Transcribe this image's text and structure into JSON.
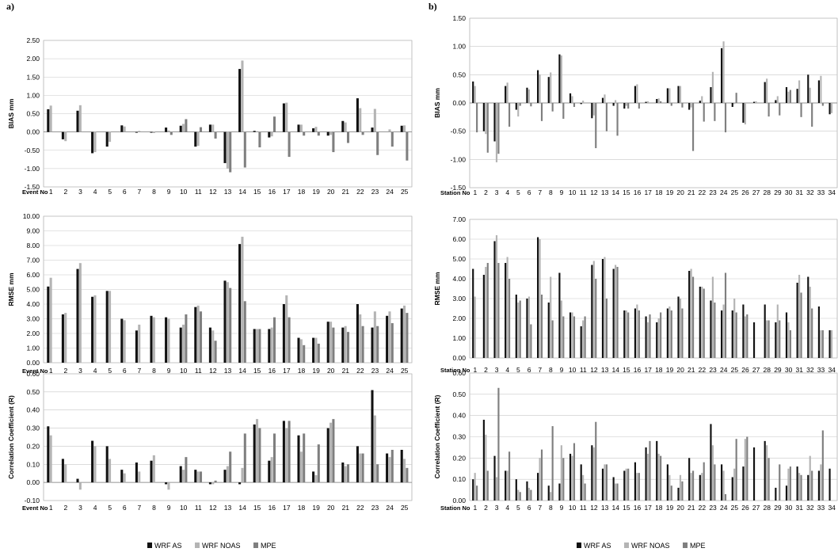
{
  "panel_labels": [
    "a)",
    "b)"
  ],
  "colors": {
    "WRF AS": "#111111",
    "WRF NOAS": "#b4b4b4",
    "MPE": "#7f7f7f",
    "grid": "#c8c8c8"
  },
  "legend": [
    "WRF AS",
    "WRF NOAS",
    "MPE"
  ],
  "chart_data": [
    {
      "id": "a1",
      "type": "bar",
      "panel": "a)",
      "ylabel": "BIAS mm",
      "xname": "Event No",
      "ylim": [
        -1.5,
        2.5
      ],
      "yticks": [
        2.5,
        2.0,
        1.5,
        1.0,
        0.5,
        0.0,
        -0.5,
        -1.0,
        -1.5
      ],
      "ytick_labels": [
        "2.50",
        "2.00",
        "1.50",
        "1.00",
        "0.50",
        "0.00",
        "-0.50",
        "-1.00",
        "-1.50"
      ],
      "categories": [
        "1",
        "2",
        "3",
        "4",
        "5",
        "6",
        "7",
        "8",
        "9",
        "10",
        "11",
        "12",
        "13",
        "14",
        "15",
        "16",
        "17",
        "18",
        "19",
        "20",
        "21",
        "22",
        "23",
        "24",
        "25"
      ],
      "series": [
        {
          "name": "WRF AS",
          "values": [
            0.62,
            -0.2,
            0.58,
            -0.58,
            -0.4,
            0.18,
            -0.02,
            -0.02,
            0.12,
            0.17,
            -0.4,
            0.2,
            -0.85,
            1.72,
            0.03,
            -0.15,
            0.78,
            0.2,
            0.1,
            -0.1,
            0.3,
            0.92,
            0.12,
            0.0,
            0.17
          ]
        },
        {
          "name": "WRF NOAS",
          "values": [
            0.72,
            -0.25,
            0.73,
            -0.55,
            -0.27,
            0.15,
            0.03,
            -0.03,
            0.04,
            0.22,
            -0.38,
            0.2,
            -1.0,
            1.95,
            0.02,
            -0.12,
            0.8,
            0.2,
            0.14,
            -0.08,
            0.26,
            0.65,
            0.63,
            0.07,
            0.18
          ]
        },
        {
          "name": "MPE",
          "values": [
            0.0,
            0.0,
            0.0,
            0.0,
            0.0,
            0.0,
            0.0,
            0.0,
            -0.08,
            0.35,
            0.13,
            -0.18,
            -1.1,
            -0.97,
            -0.42,
            0.42,
            -0.68,
            -0.1,
            -0.1,
            -0.55,
            -0.3,
            -0.08,
            -0.63,
            -0.4,
            -0.78
          ]
        }
      ]
    },
    {
      "id": "a2",
      "type": "bar",
      "panel": "a)",
      "ylabel": "RMSE mm",
      "xname": "Event No",
      "ylim": [
        0,
        10
      ],
      "yticks": [
        10,
        9,
        8,
        7,
        6,
        5,
        4,
        3,
        2,
        1,
        0
      ],
      "ytick_labels": [
        "10.00",
        "9.00",
        "8.00",
        "7.00",
        "6.00",
        "5.00",
        "4.00",
        "3.00",
        "2.00",
        "1.00",
        "0.00"
      ],
      "categories": [
        "1",
        "2",
        "3",
        "4",
        "5",
        "6",
        "7",
        "8",
        "9",
        "10",
        "11",
        "12",
        "13",
        "14",
        "15",
        "16",
        "17",
        "18",
        "19",
        "20",
        "21",
        "22",
        "23",
        "24",
        "25"
      ],
      "series": [
        {
          "name": "WRF AS",
          "values": [
            5.2,
            3.3,
            6.4,
            4.5,
            4.9,
            3.0,
            2.2,
            3.2,
            3.1,
            2.4,
            3.8,
            2.4,
            5.6,
            8.1,
            2.3,
            2.3,
            4.0,
            1.7,
            1.7,
            2.8,
            2.4,
            4.0,
            2.4,
            3.2,
            3.7
          ]
        },
        {
          "name": "WRF NOAS",
          "values": [
            5.8,
            3.4,
            6.8,
            4.6,
            4.9,
            2.9,
            2.6,
            3.1,
            3.0,
            2.6,
            3.9,
            2.2,
            5.5,
            8.6,
            2.3,
            2.4,
            4.6,
            1.6,
            1.7,
            2.8,
            2.5,
            3.3,
            3.5,
            3.5,
            3.9
          ]
        },
        {
          "name": "MPE",
          "values": [
            0,
            0,
            0,
            0,
            0,
            0,
            0,
            0,
            0,
            3.3,
            3.5,
            1.5,
            5.1,
            4.2,
            2.3,
            3.1,
            3.1,
            1.2,
            1.3,
            2.4,
            2.1,
            2.5,
            2.5,
            2.7,
            3.4
          ]
        }
      ]
    },
    {
      "id": "a3",
      "type": "bar",
      "panel": "a)",
      "ylabel": "Correlation Coefficient (R)",
      "xname": "Event No",
      "ylim": [
        -0.1,
        0.6
      ],
      "yticks": [
        0.6,
        0.5,
        0.4,
        0.3,
        0.2,
        0.1,
        0.0,
        -0.1
      ],
      "ytick_labels": [
        "0.60",
        "0.50",
        "0.40",
        "0.30",
        "0.20",
        "0.10",
        "0.00",
        "-0.10"
      ],
      "categories": [
        "1",
        "2",
        "3",
        "4",
        "5",
        "6",
        "7",
        "8",
        "9",
        "10",
        "11",
        "12",
        "13",
        "14",
        "15",
        "16",
        "17",
        "18",
        "19",
        "20",
        "21",
        "22",
        "23",
        "24",
        "25"
      ],
      "series": [
        {
          "name": "WRF AS",
          "values": [
            0.31,
            0.13,
            0.02,
            0.23,
            0.2,
            0.07,
            0.11,
            0.12,
            -0.01,
            0.09,
            0.07,
            -0.01,
            0.07,
            -0.01,
            0.32,
            0.12,
            0.34,
            0.26,
            0.06,
            0.3,
            0.11,
            0.2,
            0.51,
            0.16,
            0.18
          ]
        },
        {
          "name": "WRF NOAS",
          "values": [
            0.26,
            0.1,
            -0.04,
            0.2,
            0.13,
            0.05,
            0.06,
            0.15,
            -0.04,
            0.07,
            0.06,
            -0.01,
            0.09,
            0.08,
            0.35,
            0.14,
            0.3,
            0.17,
            0.04,
            0.33,
            0.09,
            0.16,
            0.37,
            0.14,
            0.13
          ]
        },
        {
          "name": "MPE",
          "values": [
            0,
            0,
            0,
            0,
            0,
            0,
            0,
            0,
            0,
            0.14,
            0.06,
            0.01,
            0.17,
            0.27,
            0.3,
            0.27,
            0.34,
            0.27,
            0.21,
            0.35,
            0.1,
            0.16,
            0.1,
            0.18,
            0.08
          ]
        }
      ]
    },
    {
      "id": "b1",
      "type": "bar",
      "panel": "b)",
      "ylabel": "BIAS mm",
      "xname": "Station No",
      "ylim": [
        -1.5,
        1.5
      ],
      "yticks": [
        1.5,
        1.0,
        0.5,
        0.0,
        -0.5,
        -1.0,
        -1.5
      ],
      "ytick_labels": [
        "1.50",
        "1.00",
        "0.50",
        "0.00",
        "-0.50",
        "-1.00",
        "-1.50"
      ],
      "categories": [
        "1",
        "2",
        "3",
        "4",
        "5",
        "6",
        "7",
        "8",
        "9",
        "10",
        "11",
        "12",
        "13",
        "14",
        "15",
        "16",
        "17",
        "18",
        "19",
        "20",
        "21",
        "22",
        "23",
        "24",
        "25",
        "26",
        "27",
        "28",
        "29",
        "30",
        "31",
        "32",
        "33",
        "34"
      ],
      "series": [
        {
          "name": "WRF AS",
          "values": [
            0.38,
            -0.5,
            -0.68,
            0.3,
            -0.12,
            0.27,
            0.58,
            0.46,
            0.86,
            0.17,
            -0.02,
            -0.27,
            0.09,
            -0.05,
            -0.1,
            0.3,
            0.02,
            0.07,
            0.26,
            0.3,
            -0.12,
            0.04,
            0.28,
            0.97,
            -0.07,
            -0.35,
            0.02,
            0.37,
            0.05,
            0.28,
            0.25,
            0.5,
            0.4,
            -0.2
          ]
        },
        {
          "name": "WRF NOAS",
          "values": [
            0.3,
            -0.55,
            -1.05,
            0.36,
            -0.24,
            0.24,
            0.5,
            0.54,
            0.84,
            0.12,
            0.04,
            -0.22,
            0.15,
            0.05,
            -0.05,
            0.33,
            0.03,
            0.08,
            0.26,
            0.3,
            -0.08,
            0.12,
            0.55,
            1.09,
            -0.02,
            -0.38,
            0.03,
            0.43,
            0.12,
            0.2,
            0.4,
            0.27,
            0.48,
            -0.18
          ]
        },
        {
          "name": "MPE",
          "values": [
            -0.52,
            -0.88,
            -0.9,
            -0.42,
            -0.05,
            -0.06,
            -0.32,
            -0.15,
            -0.28,
            -0.07,
            0.0,
            -0.8,
            -0.5,
            -0.58,
            -0.1,
            -0.1,
            0.0,
            0.03,
            -0.05,
            -0.08,
            -0.85,
            -0.33,
            -0.32,
            -0.52,
            0.18,
            0.0,
            0.0,
            -0.24,
            -0.22,
            0.23,
            -0.25,
            -0.42,
            -0.05,
            0.0
          ]
        }
      ]
    },
    {
      "id": "b2",
      "type": "bar",
      "panel": "b)",
      "ylabel": "RMSE mm",
      "xname": "Station No",
      "ylim": [
        0,
        7
      ],
      "yticks": [
        7,
        6,
        5,
        4,
        3,
        2,
        1,
        0
      ],
      "ytick_labels": [
        "7.00",
        "6.00",
        "5.00",
        "4.00",
        "3.00",
        "2.00",
        "1.00",
        "0.00"
      ],
      "categories": [
        "1",
        "2",
        "3",
        "4",
        "5",
        "6",
        "7",
        "8",
        "9",
        "10",
        "11",
        "12",
        "13",
        "14",
        "15",
        "16",
        "17",
        "18",
        "19",
        "20",
        "21",
        "22",
        "23",
        "24",
        "25",
        "26",
        "27",
        "28",
        "29",
        "30",
        "31",
        "32",
        "33",
        "34"
      ],
      "series": [
        {
          "name": "WRF AS",
          "values": [
            4.5,
            4.2,
            5.9,
            4.8,
            3.2,
            3.0,
            6.1,
            2.8,
            4.3,
            2.3,
            1.6,
            4.7,
            5.0,
            4.5,
            2.4,
            2.5,
            2.1,
            1.8,
            2.5,
            3.1,
            4.4,
            3.6,
            2.9,
            2.4,
            2.4,
            2.7,
            1.8,
            2.7,
            1.8,
            2.3,
            3.8,
            4.1,
            2.6,
            1.4
          ]
        },
        {
          "name": "WRF NOAS",
          "values": [
            3.1,
            4.6,
            6.2,
            5.1,
            2.8,
            3.1,
            6.0,
            4.1,
            2.9,
            2.3,
            1.9,
            4.9,
            5.1,
            4.7,
            2.4,
            2.7,
            1.8,
            2.0,
            2.6,
            3.0,
            4.5,
            3.6,
            4.1,
            2.7,
            3.0,
            2.1,
            0.0,
            1.9,
            2.7,
            1.8,
            4.2,
            3.6,
            1.4,
            1.4
          ]
        },
        {
          "name": "MPE",
          "values": [
            0.0,
            4.8,
            4.8,
            4.0,
            2.9,
            1.7,
            3.2,
            1.9,
            2.1,
            2.1,
            2.1,
            4.0,
            3.0,
            4.6,
            2.3,
            2.4,
            2.2,
            2.3,
            2.4,
            2.5,
            4.1,
            3.5,
            2.8,
            4.3,
            2.3,
            2.2,
            0.0,
            1.9,
            1.9,
            1.4,
            3.3,
            2.5,
            1.4,
            0.0
          ]
        }
      ]
    },
    {
      "id": "b3",
      "type": "bar",
      "panel": "b)",
      "ylabel": "Correlation Coefficient (R)",
      "xname": "Station No",
      "ylim": [
        0,
        0.6
      ],
      "yticks": [
        0.6,
        0.5,
        0.4,
        0.3,
        0.2,
        0.1,
        0.0
      ],
      "ytick_labels": [
        "0.60",
        "0.50",
        "0.40",
        "0.30",
        "0.20",
        "0.10",
        "0.00"
      ],
      "categories": [
        "1",
        "2",
        "3",
        "4",
        "5",
        "6",
        "7",
        "8",
        "9",
        "10",
        "11",
        "12",
        "13",
        "14",
        "15",
        "16",
        "17",
        "18",
        "19",
        "20",
        "21",
        "22",
        "23",
        "24",
        "25",
        "26",
        "27",
        "28",
        "29",
        "30",
        "31",
        "32",
        "33",
        "34"
      ],
      "series": [
        {
          "name": "WRF AS",
          "values": [
            0.1,
            0.38,
            0.21,
            0.14,
            0.1,
            0.09,
            0.13,
            0.07,
            0.08,
            0.22,
            0.17,
            0.26,
            0.15,
            0.11,
            0.14,
            0.18,
            0.25,
            0.28,
            0.17,
            0.06,
            0.2,
            0.12,
            0.36,
            0.17,
            0.11,
            0.16,
            0.25,
            0.28,
            0.06,
            0.07,
            0.16,
            0.12,
            0.14,
            0.15
          ]
        },
        {
          "name": "WRF NOAS",
          "values": [
            0.13,
            0.31,
            0.11,
            0.14,
            0.05,
            0.06,
            0.2,
            0.04,
            0.26,
            0.21,
            0.12,
            0.25,
            0.17,
            0.08,
            0.15,
            0.13,
            0.22,
            0.22,
            0.12,
            0.12,
            0.13,
            0.13,
            0.26,
            0.14,
            0.15,
            0.29,
            0.0,
            0.26,
            0.0,
            0.15,
            0.13,
            0.21,
            0.17,
            0.0
          ]
        },
        {
          "name": "MPE",
          "values": [
            0.07,
            0.14,
            0.53,
            0.23,
            0.04,
            0.05,
            0.24,
            0.35,
            0.2,
            0.27,
            0.08,
            0.37,
            0.17,
            0.08,
            0.15,
            0.13,
            0.28,
            0.21,
            0.07,
            0.09,
            0.14,
            0.18,
            0.17,
            0.03,
            0.29,
            0.3,
            0.0,
            0.2,
            0.17,
            0.16,
            0.12,
            0.14,
            0.33,
            0.0
          ]
        }
      ]
    }
  ]
}
